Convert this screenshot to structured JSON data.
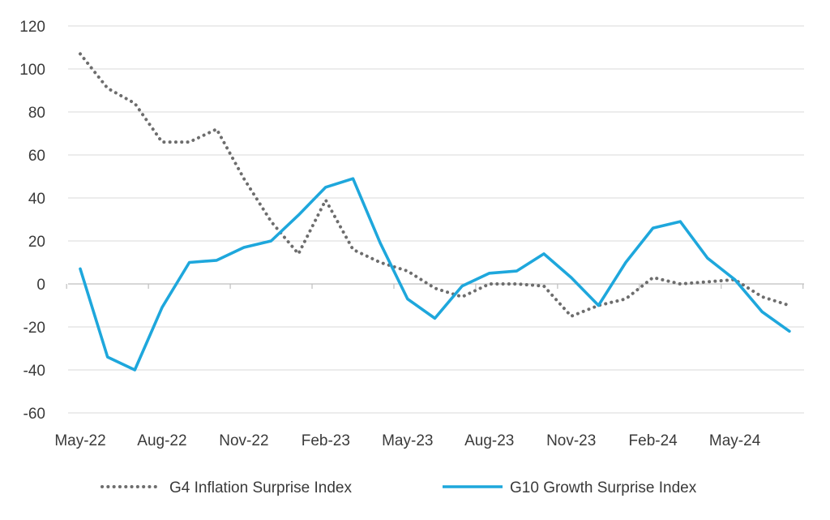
{
  "chart_data": {
    "type": "line",
    "title": "",
    "xlabel": "",
    "ylabel": "",
    "ylim": [
      -60,
      120
    ],
    "yticks": [
      120,
      100,
      80,
      60,
      40,
      20,
      0,
      -20,
      -40,
      -60
    ],
    "grid": true,
    "legend_position": "bottom",
    "categories": [
      "May-22",
      "Jun-22",
      "Jul-22",
      "Aug-22",
      "Sep-22",
      "Oct-22",
      "Nov-22",
      "Dec-22",
      "Jan-23",
      "Feb-23",
      "Mar-23",
      "Apr-23",
      "May-23",
      "Jun-23",
      "Jul-23",
      "Aug-23",
      "Sep-23",
      "Oct-23",
      "Nov-23",
      "Dec-23",
      "Jan-24",
      "Feb-24",
      "Mar-24",
      "Apr-24",
      "May-24",
      "Jun-24",
      "Jul-24"
    ],
    "x_tick_labels": [
      "May-22",
      "Aug-22",
      "Nov-22",
      "Feb-23",
      "May-23",
      "Aug-23",
      "Nov-23",
      "Feb-24",
      "May-24"
    ],
    "series": [
      {
        "name": "G4 Inflation Surprise Index",
        "style": "dotted",
        "color": "#6d6d6d",
        "values": [
          107,
          91,
          84,
          66,
          66,
          72,
          49,
          29,
          14,
          39,
          16,
          10,
          6,
          -2,
          -6,
          0,
          0,
          -1,
          -15,
          -10,
          -7,
          3,
          0,
          1,
          2,
          -6,
          -10
        ]
      },
      {
        "name": "G10 Growth Surprise Index",
        "style": "solid",
        "color": "#1ea7dc",
        "values": [
          7,
          -34,
          -40,
          -11,
          10,
          11,
          17,
          20,
          32,
          45,
          49,
          19,
          -7,
          -16,
          -1,
          5,
          6,
          14,
          3,
          -10,
          10,
          26,
          29,
          12,
          2,
          -13,
          -22
        ]
      }
    ]
  }
}
